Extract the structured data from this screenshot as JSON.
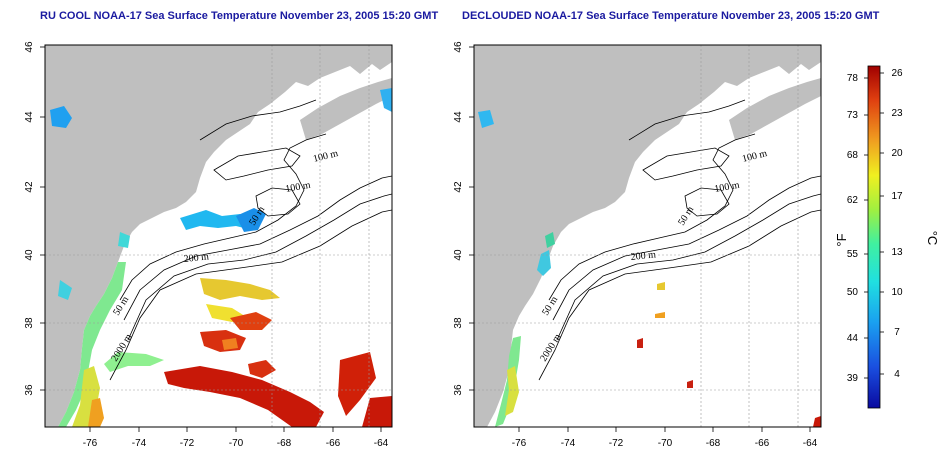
{
  "panels": [
    {
      "title": "RU COOL NOAA-17 Sea Surface Temperature November 23, 2005 15:20 GMT",
      "contour_labels": [
        "100 m",
        "100 m",
        "50 m",
        "200 m",
        "50 m",
        "2000 m"
      ]
    },
    {
      "title": "DECLOUDED NOAA-17 Sea Surface Temperature November 23, 2005 15:20 GMT",
      "contour_labels": [
        "100 m",
        "100 m",
        "50 m",
        "200 m",
        "50 m",
        "2000 m"
      ]
    }
  ],
  "axes": {
    "lon_ticks": [
      "-76",
      "-74",
      "-72",
      "-70",
      "-68",
      "-66",
      "-64"
    ],
    "lat_ticks": [
      "36",
      "38",
      "40",
      "42",
      "44",
      "46"
    ]
  },
  "colorbar": {
    "f_ticks": [
      "78",
      "73",
      "68",
      "62",
      "55",
      "50",
      "44",
      "39"
    ],
    "c_ticks": [
      "26",
      "23",
      "20",
      "17",
      "13",
      "10",
      "7",
      "4"
    ],
    "f_unit": "°F",
    "c_unit": "°C",
    "colors": [
      "#0a0aa0",
      "#1a4fe0",
      "#1aa0f0",
      "#20e0e0",
      "#40f0a0",
      "#a0f040",
      "#f0f020",
      "#f0a020",
      "#e04010",
      "#a00000"
    ]
  },
  "colors": {
    "land": "#bfbfbf",
    "title": "#1a1aa0"
  }
}
